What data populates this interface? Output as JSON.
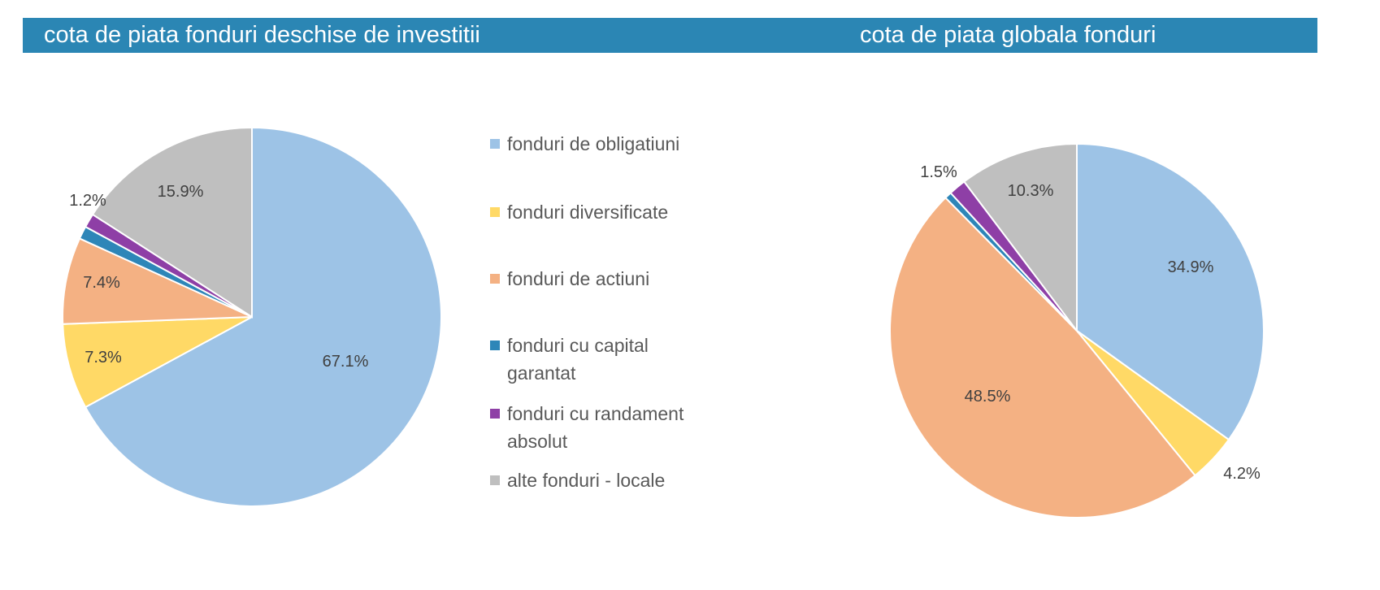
{
  "headers": {
    "left": "cota de piata fonduri deschise de investitii",
    "right": "cota de piata globala fonduri"
  },
  "legend": [
    {
      "label": "fonduri de obligatiuni",
      "color": "#9dc3e6"
    },
    {
      "label": "fonduri diversificate",
      "color": "#ffd966"
    },
    {
      "label": "fonduri de actiuni",
      "color": "#f4b183"
    },
    {
      "label": "fonduri cu capital garantat",
      "color": "#2e86b8"
    },
    {
      "label": "fonduri cu randament absolut",
      "color": "#8e3fa6"
    },
    {
      "label": "alte fonduri - locale",
      "color": "#bfbfbf"
    }
  ],
  "chart_data": [
    {
      "type": "pie",
      "title": "cota de piata fonduri deschise de investitii",
      "categories": [
        "fonduri de obligatiuni",
        "fonduri diversificate",
        "fonduri de actiuni",
        "fonduri cu capital garantat",
        "fonduri cu randament absolut",
        "alte fonduri - locale"
      ],
      "values": [
        67.1,
        7.3,
        7.4,
        1.1,
        1.2,
        15.9
      ],
      "labels": [
        "67.1%",
        "7.3%",
        "7.4%",
        "",
        "1.2%",
        "15.9%"
      ],
      "colors": [
        "#9dc3e6",
        "#ffd966",
        "#f4b183",
        "#2e86b8",
        "#8e3fa6",
        "#bfbfbf"
      ]
    },
    {
      "type": "pie",
      "title": "cota de piata globala fonduri",
      "categories": [
        "fonduri de obligatiuni",
        "fonduri diversificate",
        "fonduri de actiuni",
        "fonduri cu capital garantat",
        "fonduri cu randament absolut",
        "alte fonduri - locale"
      ],
      "values": [
        34.9,
        4.2,
        48.5,
        0.6,
        1.5,
        10.3
      ],
      "labels": [
        "34.9%",
        "4.2%",
        "48.5%",
        "",
        "1.5%",
        "10.3%"
      ],
      "colors": [
        "#9dc3e6",
        "#ffd966",
        "#f4b183",
        "#2e86b8",
        "#8e3fa6",
        "#bfbfbf"
      ]
    }
  ]
}
